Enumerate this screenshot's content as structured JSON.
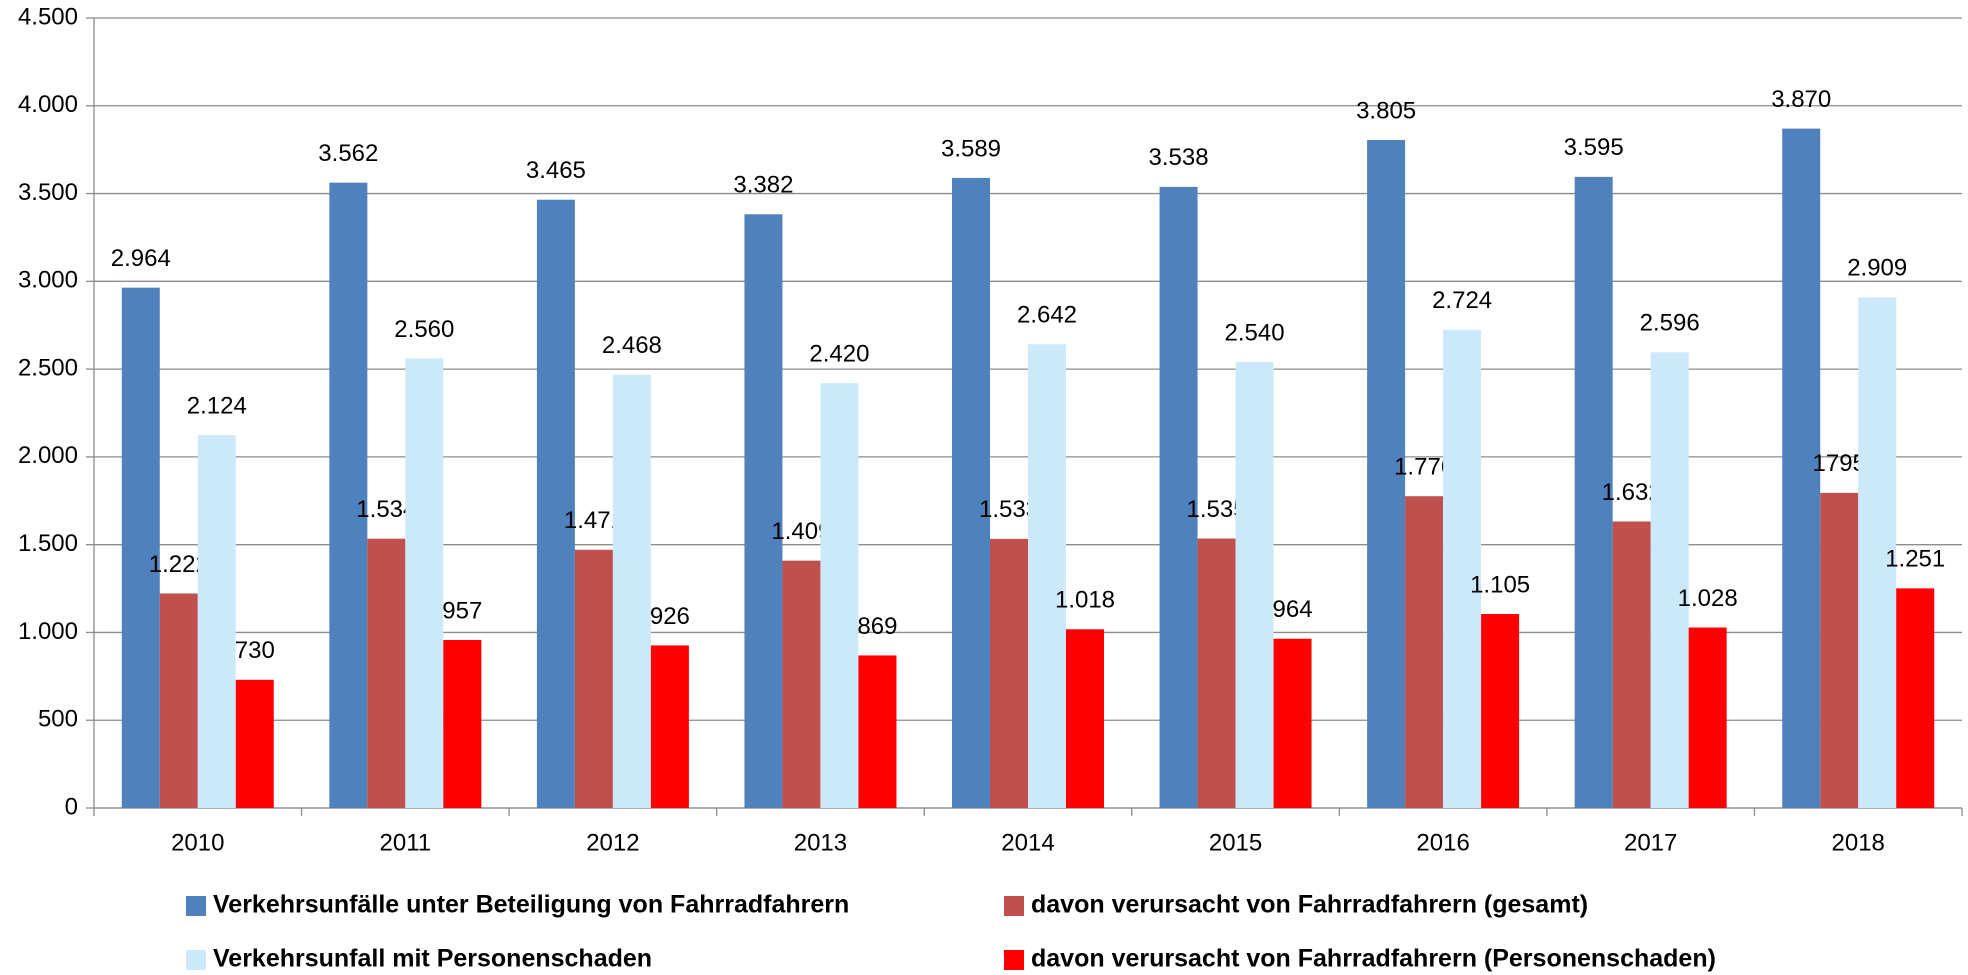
{
  "chart_data": {
    "type": "bar",
    "categories": [
      "2010",
      "2011",
      "2012",
      "2013",
      "2014",
      "2015",
      "2016",
      "2017",
      "2018"
    ],
    "series": [
      {
        "name": "Verkehrsunfälle unter Beteiligung von Fahrradfahrern",
        "color": "#4f81bd",
        "values": [
          2964,
          3562,
          3465,
          3382,
          3589,
          3538,
          3805,
          3595,
          3870
        ],
        "value_labels": [
          "2.964",
          "3.562",
          "3.465",
          "3.382",
          "3.589",
          "3.538",
          "3.805",
          "3.595",
          "3.870"
        ]
      },
      {
        "name": "davon verursacht von Fahrradfahrern (gesamt)",
        "color": "#c0504d",
        "values": [
          1222,
          1534,
          1471,
          1409,
          1533,
          1535,
          1776,
          1632,
          1795
        ],
        "value_labels": [
          "1.222",
          "1.534",
          "1.471",
          "1.409",
          "1.533",
          "1.535",
          "1.776",
          "1.632",
          "1795"
        ]
      },
      {
        "name": "Verkehrsunfall mit Personenschaden",
        "color": "#cce9fb",
        "values": [
          2124,
          2560,
          2468,
          2420,
          2642,
          2540,
          2724,
          2596,
          2909
        ],
        "value_labels": [
          "2.124",
          "2.560",
          "2.468",
          "2.420",
          "2.642",
          "2.540",
          "2.724",
          "2.596",
          "2.909"
        ]
      },
      {
        "name": "davon verursacht von Fahrradfahrern (Personenschaden)",
        "color": "#ff0000",
        "values": [
          730,
          957,
          926,
          869,
          1018,
          964,
          1105,
          1028,
          1251
        ],
        "value_labels": [
          "730",
          "957",
          "926",
          "869",
          "1.018",
          "964",
          "1.105",
          "1.028",
          "1.251"
        ]
      }
    ],
    "ylim": [
      0,
      4500
    ],
    "yticks": [
      0,
      500,
      {
        "value": 1000,
        "label": "1.000"
      },
      {
        "value": 1500,
        "label": "1.500"
      },
      {
        "value": 2000,
        "label": "2.000"
      },
      {
        "value": 2500,
        "label": "2.500"
      },
      {
        "value": 3000,
        "label": "3.000"
      },
      {
        "value": 3500,
        "label": "3.500"
      },
      {
        "value": 4000,
        "label": "4.000"
      },
      {
        "value": 4500,
        "label": "4.500"
      }
    ],
    "grid": true
  }
}
